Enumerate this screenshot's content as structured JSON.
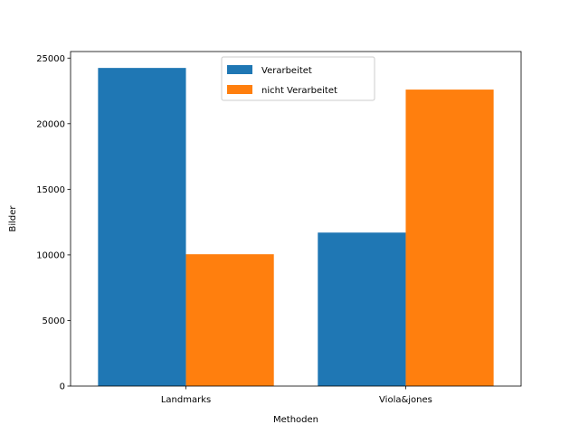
{
  "chart_data": {
    "type": "bar",
    "title": "",
    "xlabel": "Methoden",
    "ylabel": "Bilder",
    "categories": [
      "Landmarks",
      "Viola&jones"
    ],
    "series": [
      {
        "name": "Verarbeitet",
        "values": [
          24250,
          11700
        ],
        "color": "#1f77b4"
      },
      {
        "name": "nicht Verarbeitet",
        "values": [
          10050,
          22600
        ],
        "color": "#ff7f0e"
      }
    ],
    "ylim": [
      0,
      25500
    ],
    "yticks": [
      0,
      5000,
      10000,
      15000,
      20000,
      25000
    ],
    "grid": false,
    "legend_position": "top-center"
  }
}
